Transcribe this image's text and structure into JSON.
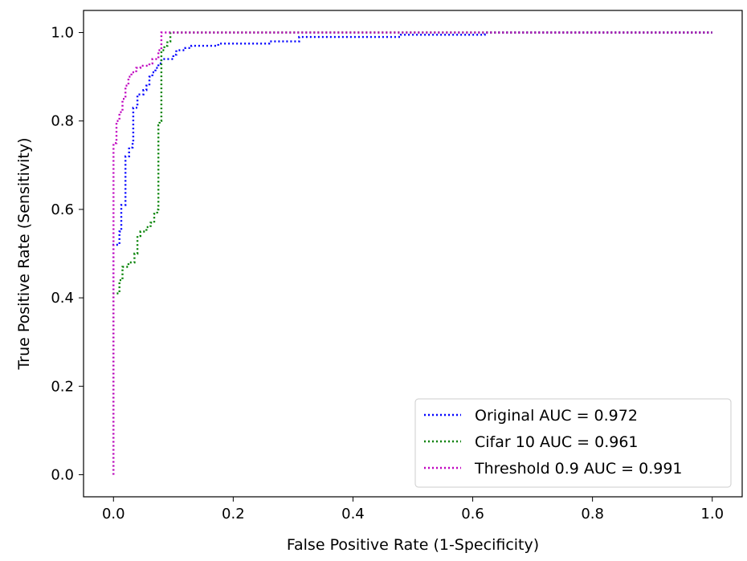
{
  "chart_data": {
    "type": "line",
    "title": "",
    "xlabel": "False Positive Rate (1-Specificity)",
    "ylabel": "True Positive Rate (Sensitivity)",
    "xlim": [
      -0.05,
      1.05
    ],
    "ylim": [
      -0.05,
      1.05
    ],
    "xticks": [
      0.0,
      0.2,
      0.4,
      0.6,
      0.8,
      1.0
    ],
    "yticks": [
      0.0,
      0.2,
      0.4,
      0.6,
      0.8,
      1.0
    ],
    "xtick_labels": [
      "0.0",
      "0.2",
      "0.4",
      "0.6",
      "0.8",
      "1.0"
    ],
    "ytick_labels": [
      "0.0",
      "0.2",
      "0.4",
      "0.6",
      "0.8",
      "1.0"
    ],
    "grid": false,
    "legend_position": "lower right",
    "line_style": "dotted",
    "series": [
      {
        "name": "Original AUC = 0.972",
        "color": "#0000ff",
        "points": [
          [
            0.0,
            0.0
          ],
          [
            0.0,
            0.52
          ],
          [
            0.01,
            0.52
          ],
          [
            0.01,
            0.55
          ],
          [
            0.013,
            0.55
          ],
          [
            0.013,
            0.61
          ],
          [
            0.02,
            0.61
          ],
          [
            0.02,
            0.72
          ],
          [
            0.026,
            0.72
          ],
          [
            0.026,
            0.74
          ],
          [
            0.032,
            0.74
          ],
          [
            0.032,
            0.75
          ],
          [
            0.033,
            0.75
          ],
          [
            0.033,
            0.83
          ],
          [
            0.04,
            0.83
          ],
          [
            0.04,
            0.86
          ],
          [
            0.05,
            0.86
          ],
          [
            0.05,
            0.87
          ],
          [
            0.055,
            0.87
          ],
          [
            0.055,
            0.88
          ],
          [
            0.06,
            0.88
          ],
          [
            0.06,
            0.9
          ],
          [
            0.065,
            0.9
          ],
          [
            0.065,
            0.91
          ],
          [
            0.07,
            0.91
          ],
          [
            0.07,
            0.92
          ],
          [
            0.075,
            0.92
          ],
          [
            0.075,
            0.93
          ],
          [
            0.08,
            0.93
          ],
          [
            0.08,
            0.94
          ],
          [
            0.1,
            0.94
          ],
          [
            0.1,
            0.95
          ],
          [
            0.105,
            0.95
          ],
          [
            0.105,
            0.96
          ],
          [
            0.12,
            0.96
          ],
          [
            0.12,
            0.965
          ],
          [
            0.13,
            0.965
          ],
          [
            0.13,
            0.97
          ],
          [
            0.175,
            0.97
          ],
          [
            0.175,
            0.975
          ],
          [
            0.26,
            0.975
          ],
          [
            0.26,
            0.98
          ],
          [
            0.31,
            0.98
          ],
          [
            0.31,
            0.99
          ],
          [
            0.48,
            0.99
          ],
          [
            0.48,
            0.995
          ],
          [
            0.62,
            0.995
          ],
          [
            0.62,
            1.0
          ],
          [
            1.0,
            1.0
          ]
        ]
      },
      {
        "name": "Cifar 10 AUC = 0.961",
        "color": "#008000",
        "points": [
          [
            0.0,
            0.0
          ],
          [
            0.0,
            0.41
          ],
          [
            0.01,
            0.41
          ],
          [
            0.01,
            0.44
          ],
          [
            0.015,
            0.44
          ],
          [
            0.015,
            0.47
          ],
          [
            0.025,
            0.47
          ],
          [
            0.025,
            0.48
          ],
          [
            0.035,
            0.48
          ],
          [
            0.035,
            0.5
          ],
          [
            0.04,
            0.5
          ],
          [
            0.04,
            0.54
          ],
          [
            0.045,
            0.54
          ],
          [
            0.045,
            0.55
          ],
          [
            0.055,
            0.55
          ],
          [
            0.055,
            0.56
          ],
          [
            0.062,
            0.56
          ],
          [
            0.062,
            0.57
          ],
          [
            0.068,
            0.57
          ],
          [
            0.068,
            0.59
          ],
          [
            0.073,
            0.59
          ],
          [
            0.073,
            0.6
          ],
          [
            0.075,
            0.6
          ],
          [
            0.075,
            0.79
          ],
          [
            0.077,
            0.79
          ],
          [
            0.077,
            0.8
          ],
          [
            0.08,
            0.8
          ],
          [
            0.08,
            0.96
          ],
          [
            0.085,
            0.96
          ],
          [
            0.085,
            0.97
          ],
          [
            0.09,
            0.97
          ],
          [
            0.09,
            0.98
          ],
          [
            0.095,
            0.98
          ],
          [
            0.095,
            1.0
          ],
          [
            1.0,
            1.0
          ]
        ]
      },
      {
        "name": "Threshold 0.9 AUC = 0.991",
        "color": "#bf00bf",
        "points": [
          [
            0.0,
            0.0
          ],
          [
            0.0,
            0.75
          ],
          [
            0.005,
            0.75
          ],
          [
            0.005,
            0.8
          ],
          [
            0.01,
            0.8
          ],
          [
            0.01,
            0.82
          ],
          [
            0.015,
            0.82
          ],
          [
            0.015,
            0.85
          ],
          [
            0.02,
            0.85
          ],
          [
            0.02,
            0.88
          ],
          [
            0.025,
            0.88
          ],
          [
            0.025,
            0.9
          ],
          [
            0.03,
            0.9
          ],
          [
            0.03,
            0.91
          ],
          [
            0.038,
            0.91
          ],
          [
            0.038,
            0.92
          ],
          [
            0.045,
            0.92
          ],
          [
            0.045,
            0.925
          ],
          [
            0.06,
            0.925
          ],
          [
            0.06,
            0.93
          ],
          [
            0.065,
            0.93
          ],
          [
            0.065,
            0.94
          ],
          [
            0.075,
            0.94
          ],
          [
            0.075,
            0.96
          ],
          [
            0.08,
            0.96
          ],
          [
            0.08,
            1.0
          ],
          [
            1.0,
            1.0
          ]
        ]
      }
    ]
  },
  "colors": {
    "axes": "#000000",
    "legend_border": "#cccccc"
  }
}
